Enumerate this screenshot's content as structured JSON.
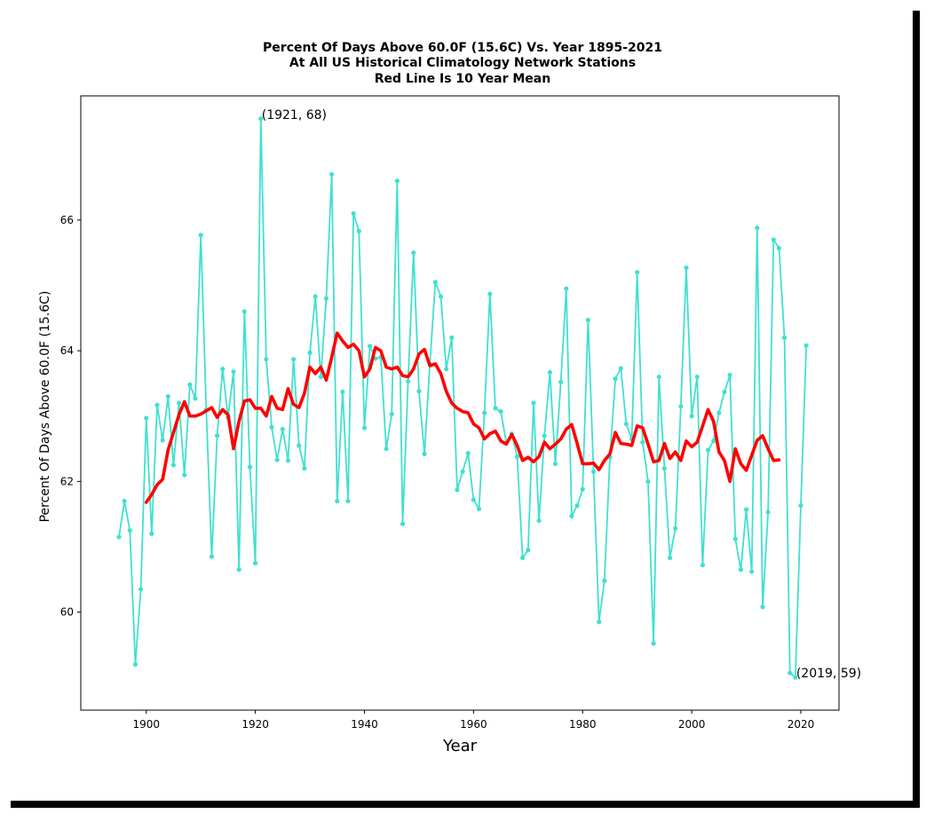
{
  "chart_data": {
    "type": "line",
    "title_lines": [
      "Percent Of Days Above 60.0F (15.6C) Vs. Year 1895-2021",
      "At All US Historical Climatology Network Stations",
      "Red Line Is 10 Year Mean"
    ],
    "xlabel": "Year",
    "ylabel": "Percent Of Days Above 60.0F (15.6C)",
    "xlim": [
      1888,
      2027
    ],
    "ylim": [
      58.5,
      67.9
    ],
    "x_ticks": [
      1900,
      1920,
      1940,
      1960,
      1980,
      2000,
      2020
    ],
    "y_ticks": [
      60,
      62,
      64,
      66
    ],
    "grid": false,
    "series": [
      {
        "role": "annual",
        "color": "#40e0d0",
        "x_start": 1895,
        "values": [
          61.15,
          61.7,
          61.25,
          59.2,
          60.35,
          62.97,
          61.2,
          63.17,
          62.63,
          63.3,
          62.25,
          63.2,
          62.1,
          63.48,
          63.27,
          65.77,
          63.1,
          60.85,
          62.7,
          63.72,
          62.98,
          63.68,
          60.65,
          64.6,
          62.22,
          60.75,
          67.55,
          63.87,
          62.83,
          62.33,
          62.8,
          62.32,
          63.87,
          62.55,
          62.2,
          63.97,
          64.83,
          63.6,
          64.8,
          66.7,
          61.7,
          63.37,
          61.7,
          66.1,
          65.83,
          62.82,
          64.07,
          63.88,
          63.9,
          62.5,
          63.03,
          66.6,
          61.35,
          63.53,
          65.5,
          63.38,
          62.42,
          63.8,
          65.05,
          64.83,
          63.72,
          64.2,
          61.87,
          62.15,
          62.43,
          61.72,
          61.58,
          63.05,
          64.87,
          63.12,
          63.07,
          62.6,
          62.73,
          62.38,
          60.83,
          60.95,
          63.2,
          61.4,
          62.7,
          63.67,
          62.27,
          63.52,
          64.95,
          61.47,
          61.63,
          61.88,
          64.47,
          62.15,
          59.85,
          60.48,
          62.37,
          63.57,
          63.73,
          62.88,
          62.65,
          65.2,
          62.6,
          62.0,
          59.52,
          63.6,
          62.2,
          60.83,
          61.28,
          63.15,
          65.27,
          63.0,
          63.6,
          60.72,
          62.48,
          62.62,
          63.05,
          63.37,
          63.63,
          61.12,
          60.65,
          61.57,
          60.62,
          65.88,
          60.08,
          61.53,
          65.7,
          65.57,
          64.2,
          59.07,
          59.0,
          61.63,
          64.08
        ]
      },
      {
        "role": "10-year-mean",
        "color": "#ff0000",
        "x_start": 1900,
        "values": [
          61.68,
          61.8,
          61.95,
          62.03,
          62.48,
          62.75,
          63.02,
          63.22,
          63.0,
          63.0,
          63.03,
          63.08,
          63.13,
          62.98,
          63.1,
          63.02,
          62.5,
          62.92,
          63.23,
          63.25,
          63.12,
          63.12,
          63.0,
          63.3,
          63.12,
          63.1,
          63.42,
          63.18,
          63.13,
          63.35,
          63.75,
          63.65,
          63.75,
          63.55,
          63.9,
          64.27,
          64.15,
          64.05,
          64.1,
          64.0,
          63.6,
          63.72,
          64.05,
          64.0,
          63.75,
          63.72,
          63.75,
          63.62,
          63.6,
          63.72,
          63.95,
          64.02,
          63.77,
          63.8,
          63.65,
          63.38,
          63.2,
          63.12,
          63.07,
          63.05,
          62.88,
          62.82,
          62.65,
          62.73,
          62.77,
          62.62,
          62.57,
          62.72,
          62.55,
          62.32,
          62.37,
          62.3,
          62.38,
          62.6,
          62.5,
          62.57,
          62.65,
          62.8,
          62.87,
          62.58,
          62.27,
          62.27,
          62.28,
          62.18,
          62.32,
          62.42,
          62.75,
          62.58,
          62.57,
          62.55,
          62.85,
          62.82,
          62.57,
          62.3,
          62.32,
          62.58,
          62.35,
          62.45,
          62.32,
          62.62,
          62.53,
          62.6,
          62.85,
          63.1,
          62.92,
          62.45,
          62.32,
          62.0,
          62.5,
          62.27,
          62.17,
          62.4,
          62.63,
          62.7,
          62.5,
          62.32,
          62.33
        ]
      }
    ],
    "annotations": [
      {
        "x": 1921,
        "y": 67.55,
        "text": "(1921, 68)"
      },
      {
        "x": 2019,
        "y": 59.0,
        "text": "(2019, 59)"
      }
    ]
  }
}
